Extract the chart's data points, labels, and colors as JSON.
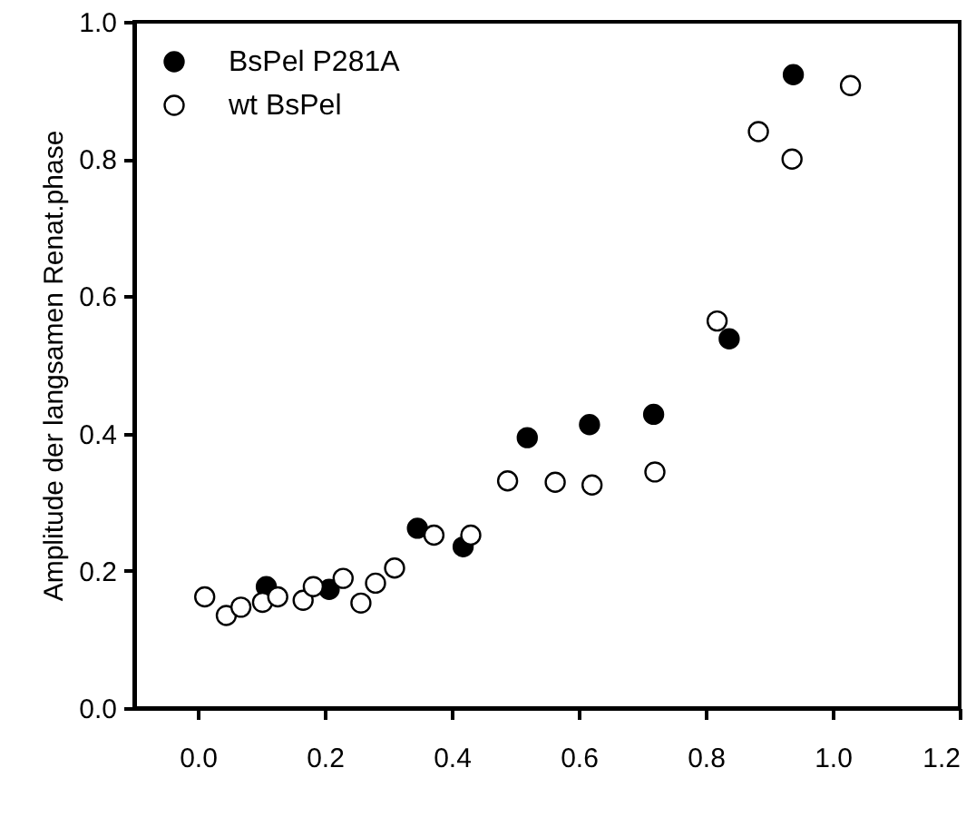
{
  "chart_data": {
    "type": "scatter",
    "ylabel": "Amplitude der langsamen Renat.phase",
    "xlim": [
      -0.1,
      1.2
    ],
    "ylim": [
      0,
      1.0
    ],
    "xticks": [
      {
        "value": 0,
        "label": "0.0"
      },
      0.2,
      0.4,
      0.6,
      0.8,
      {
        "value": 1,
        "label": "1.0"
      },
      1.2
    ],
    "yticks": [
      {
        "value": 0,
        "label": "0.0"
      },
      0.2,
      0.4,
      0.6,
      0.8,
      {
        "value": 1,
        "label": "1.0"
      }
    ],
    "grid": false,
    "legend": "top left",
    "marker": "circle",
    "series": [
      {
        "name": "BsPel P281A",
        "color": "#000000",
        "x": [
          0.108,
          0.207,
          0.346,
          0.418,
          0.519,
          0.617,
          0.718,
          0.837,
          0.938
        ],
        "values": [
          0.177,
          0.173,
          0.262,
          0.235,
          0.394,
          0.413,
          0.428,
          0.538,
          0.923
        ]
      },
      {
        "name": "wt BsPel",
        "color": "#ffffff",
        "x": [
          0.011,
          0.045,
          0.068,
          0.102,
          0.126,
          0.166,
          0.182,
          0.229,
          0.257,
          0.28,
          0.31,
          0.372,
          0.43,
          0.488,
          0.563,
          0.621,
          0.72,
          0.818,
          0.883,
          0.936,
          1.028
        ],
        "values": [
          0.162,
          0.135,
          0.147,
          0.154,
          0.162,
          0.157,
          0.177,
          0.189,
          0.153,
          0.182,
          0.204,
          0.252,
          0.252,
          0.331,
          0.329,
          0.325,
          0.344,
          0.564,
          0.84,
          0.8,
          0.907
        ]
      }
    ]
  }
}
